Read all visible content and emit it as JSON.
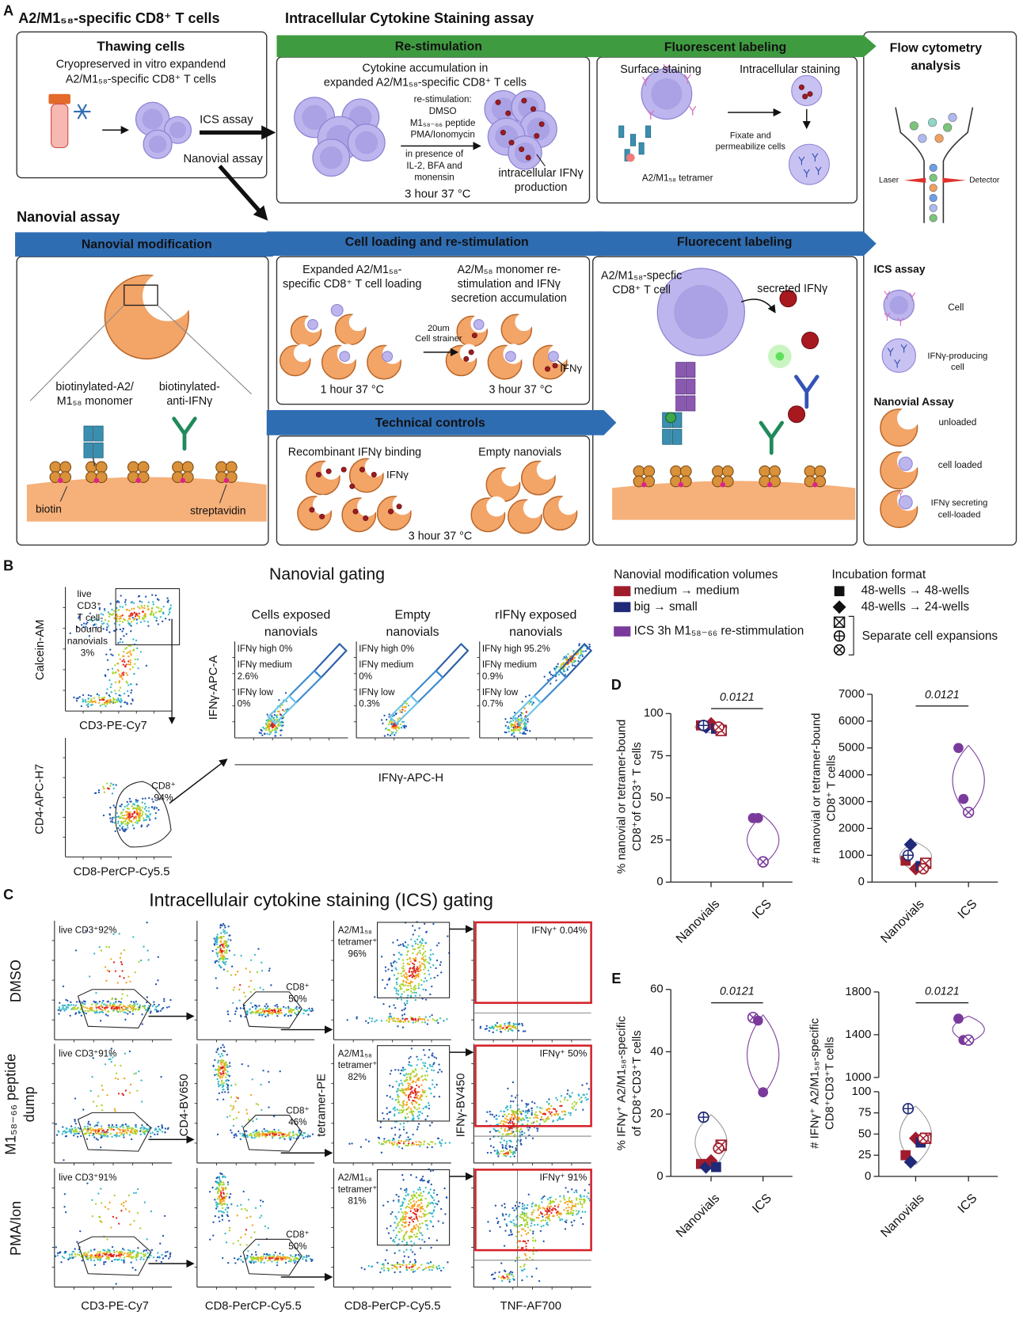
{
  "panel_a": {
    "label": "A",
    "title": "A2/M1₅₈-specific CD8⁺ T cells",
    "ics_title": "Intracellular Cytokine Staining assay",
    "thawing": {
      "title": "Thawing cells",
      "line1": "Cryopreserved in vitro expandend",
      "line2": "A2/M1₅₈-specific CD8⁺ T cells",
      "ics_arrow": "ICS assay",
      "nanovial_arrow": "Nanovial assay"
    },
    "restim": {
      "banner": "Re-stimulation",
      "line1": "Cytokine accumulation in",
      "line2": "expanded A2/M1₅₈-specific CD8⁺ T cells",
      "conditions": [
        "re-stimulation:",
        "DMSO",
        "M1₅₈₋₆₆ peptide",
        "PMA/Ionomycin"
      ],
      "presence": [
        "in presence of",
        "IL-2, BFA and",
        "monensin"
      ],
      "product": [
        "intracellular IFNγ",
        "production"
      ],
      "time": "3 hour 37 °C"
    },
    "labeling": {
      "banner": "Fluorescent labeling",
      "surface": "Surface staining",
      "intracellular": "Intracellular staining",
      "fixate": [
        "Fixate and",
        "permeabilize cells"
      ],
      "tetramer": "A2/M1₅₈ tetramer"
    },
    "flow": {
      "title": [
        "Flow cytometry",
        "analysis"
      ],
      "laser": "Laser",
      "detector": "Detector",
      "ics": "ICS assay",
      "cell": "Cell",
      "ifng_cell": [
        "IFNγ-producing",
        "cell"
      ],
      "nanovial": "Nanovial Assay",
      "unloaded": "unloaded",
      "loaded": "cell loaded",
      "secreting": [
        "IFNγ secreting",
        "cell-loaded"
      ]
    },
    "nanovial_title": "Nanovial assay",
    "modification": {
      "banner": "Nanovial modification",
      "monomer": [
        "biotinylated-A2/",
        "M1₅₈ monomer"
      ],
      "anti": [
        "biotinylated-",
        "anti-IFNγ"
      ],
      "biotin": "biotin",
      "streptavidin": "streptavidin"
    },
    "loading": {
      "banner": "Cell loading and re-stimulation",
      "left": [
        "Expanded A2/M1₅₈-",
        "specific CD8⁺ T cell loading"
      ],
      "right": [
        "A2/M₅₈ monomer re-",
        "stimulation and IFNγ",
        "secretion accumulation"
      ],
      "strainer": [
        "20um",
        "Cell strainer"
      ],
      "ifng": "IFNγ",
      "time_left": "1 hour 37 °C",
      "time_right": "3 hour 37 °C"
    },
    "controls": {
      "banner": "Technical controls",
      "recombinant": "Recombinant IFNγ binding",
      "empty": "Empty nanovials",
      "ifng": "IFNγ",
      "time": "3 hour 37 °C"
    },
    "fluor": {
      "banner": "Fluorecent labeling",
      "cell": [
        "A2/M1₅₈-specfic",
        "CD8⁺ T cell"
      ],
      "secreted": "secreted IFNγ"
    }
  },
  "panel_b": {
    "label": "B",
    "title": "Nanovial gating",
    "plot1": {
      "y": "Calcein-AM",
      "x": "CD3-PE-Cy7",
      "gate": [
        "live",
        "CD3⁺",
        "T cell-",
        "bound",
        "nanovials",
        "3%"
      ]
    },
    "plot2": {
      "y": "CD4-APC-H7",
      "x": "CD8-PerCP-Cy5.5",
      "gate": [
        "CD8⁺",
        "94%"
      ]
    },
    "ifng_plots": {
      "y": "IFNγ-APC-A",
      "x": "IFNγ-APC-H",
      "plots": [
        {
          "title": [
            "Cells exposed",
            "nanovials"
          ],
          "gates": [
            "IFNγ high 0%",
            "IFNγ medium",
            "2.6%",
            "IFNγ low",
            "0%"
          ]
        },
        {
          "title": [
            "Empty",
            "nanovials"
          ],
          "gates": [
            "IFNγ high 0%",
            "IFNγ medium",
            "0%",
            "IFNγ low",
            "0.3%"
          ]
        },
        {
          "title": [
            "rIFNγ exposed",
            "nanovials"
          ],
          "gates": [
            "IFNγ high 95.2%",
            "IFNγ medium",
            "0.9%",
            "IFNγ low",
            "0.7%"
          ]
        }
      ]
    },
    "legend": {
      "color_title": "Nanovial modification volumes",
      "colors": [
        {
          "name": "medium → medium",
          "color": "#a01c2c"
        },
        {
          "name": "big → small",
          "color": "#1f2a78"
        },
        {
          "name": "ICS 3h M1₅₈₋₆₆ re-stimmulation",
          "color": "#7a3a9c"
        }
      ],
      "format_title": "Incubation format",
      "formats": [
        {
          "name": "48-wells → 48-wells",
          "marker": "square"
        },
        {
          "name": "48-wells → 24-wells",
          "marker": "diamond"
        }
      ],
      "expansions": {
        "name": "Separate cell expansions",
        "markers": [
          "boxed-x",
          "circle-plus",
          "circle-x"
        ]
      }
    }
  },
  "panel_c": {
    "label": "C",
    "title": "Intracellulair cytokine staining (ICS) gating",
    "rows": [
      {
        "name": [
          "DMSO"
        ],
        "live": "live CD3⁺92%",
        "cd8": [
          "CD8⁺",
          "50%"
        ],
        "tetramer": [
          "A2/M1₅₈",
          "tetramer⁺",
          "96%"
        ],
        "ifng": "IFNγ⁺ 0.04%"
      },
      {
        "name": [
          "M1₅₈₋₆₆ peptide",
          "dump"
        ],
        "live": "live CD3⁺91%",
        "cd8": [
          "CD8⁺",
          "46%"
        ],
        "tetramer": [
          "A2/M1₅₈",
          "tetramer⁺",
          "82%"
        ],
        "ifng": "IFNγ⁺ 50%"
      },
      {
        "name": [
          "PMA/Ion"
        ],
        "live": "live CD3⁺91%",
        "cd8": [
          "CD8⁺",
          "50%"
        ],
        "tetramer": [
          "A2/M1₅₈",
          "tetramer⁺",
          "81%"
        ],
        "ifng": "IFNγ⁺ 91%"
      }
    ],
    "x_labels": [
      "CD3-PE-Cy7",
      "CD8-PerCP-Cy5.5",
      "CD8-PerCP-Cy5.5",
      "TNF-AF700"
    ],
    "y_labels": [
      "CD4-BV650",
      "tetramer-PE",
      "IFNγ-BV450"
    ]
  },
  "panel_d_label": "D",
  "panel_e_label": "E",
  "chart_data": [
    {
      "type": "dotplot",
      "ylabel": [
        "% nanovial or tetramer-bound",
        "CD8⁺of CD3⁺ T cells"
      ],
      "categories": [
        "Nanovials",
        "ICS"
      ],
      "ylim": [
        0,
        100
      ],
      "yticks": [
        0,
        25,
        50,
        75,
        100
      ],
      "p_value": "0.0121",
      "points": [
        {
          "category": "Nanovials",
          "value": 93,
          "color": "#a01c2c",
          "marker": "square"
        },
        {
          "category": "Nanovials",
          "value": 92,
          "color": "#1f2a78",
          "marker": "diamond"
        },
        {
          "category": "Nanovials",
          "value": 94,
          "color": "#a01c2c",
          "marker": "diamond"
        },
        {
          "category": "Nanovials",
          "value": 91,
          "color": "#1f2a78",
          "marker": "square"
        },
        {
          "category": "Nanovials",
          "value": 90,
          "color": "#a01c2c",
          "marker": "boxed-x"
        },
        {
          "category": "Nanovials",
          "value": 93,
          "color": "#1f2a78",
          "marker": "circle-plus"
        },
        {
          "category": "Nanovials",
          "value": 92,
          "color": "#a01c2c",
          "marker": "circle-x"
        },
        {
          "category": "ICS",
          "value": 38,
          "color": "#7a3a9c",
          "marker": "circle"
        },
        {
          "category": "ICS",
          "value": 38,
          "color": "#7a3a9c",
          "marker": "circle"
        },
        {
          "category": "ICS",
          "value": 12,
          "color": "#7a3a9c",
          "marker": "circle-x"
        }
      ]
    },
    {
      "type": "dotplot",
      "ylabel": [
        "# nanovial or tetramer-bound",
        "CD8⁺ T cells"
      ],
      "categories": [
        "Nanovials",
        "ICS"
      ],
      "ylim": [
        0,
        7000
      ],
      "yticks": [
        0,
        1000,
        2000,
        3000,
        4000,
        5000,
        6000,
        7000
      ],
      "p_value": "0.0121",
      "points": [
        {
          "category": "Nanovials",
          "value": 800,
          "color": "#a01c2c",
          "marker": "square"
        },
        {
          "category": "Nanovials",
          "value": 1400,
          "color": "#1f2a78",
          "marker": "diamond"
        },
        {
          "category": "Nanovials",
          "value": 500,
          "color": "#a01c2c",
          "marker": "diamond"
        },
        {
          "category": "Nanovials",
          "value": 600,
          "color": "#1f2a78",
          "marker": "square"
        },
        {
          "category": "Nanovials",
          "value": 700,
          "color": "#a01c2c",
          "marker": "boxed-x"
        },
        {
          "category": "Nanovials",
          "value": 1000,
          "color": "#1f2a78",
          "marker": "circle-plus"
        },
        {
          "category": "Nanovials",
          "value": 500,
          "color": "#a01c2c",
          "marker": "circle-x"
        },
        {
          "category": "ICS",
          "value": 5000,
          "color": "#7a3a9c",
          "marker": "circle"
        },
        {
          "category": "ICS",
          "value": 3100,
          "color": "#7a3a9c",
          "marker": "circle"
        },
        {
          "category": "ICS",
          "value": 2600,
          "color": "#7a3a9c",
          "marker": "circle-x"
        }
      ]
    },
    {
      "type": "dotplot",
      "ylabel": [
        "% IFNγ⁺ A2/M1₅₈-specific",
        "of CD8⁺CD3⁺T cells"
      ],
      "categories": [
        "Nanovials",
        "ICS"
      ],
      "ylim": [
        0,
        60
      ],
      "yticks": [
        0,
        20,
        40,
        60
      ],
      "p_value": "0.0121",
      "points": [
        {
          "category": "Nanovials",
          "value": 4,
          "color": "#a01c2c",
          "marker": "square"
        },
        {
          "category": "Nanovials",
          "value": 3,
          "color": "#1f2a78",
          "marker": "diamond"
        },
        {
          "category": "Nanovials",
          "value": 5,
          "color": "#a01c2c",
          "marker": "diamond"
        },
        {
          "category": "Nanovials",
          "value": 3,
          "color": "#1f2a78",
          "marker": "square"
        },
        {
          "category": "Nanovials",
          "value": 10,
          "color": "#a01c2c",
          "marker": "boxed-x"
        },
        {
          "category": "Nanovials",
          "value": 19,
          "color": "#1f2a78",
          "marker": "circle-plus"
        },
        {
          "category": "Nanovials",
          "value": 9,
          "color": "#a01c2c",
          "marker": "circle-x"
        },
        {
          "category": "ICS",
          "value": 51,
          "color": "#7a3a9c",
          "marker": "circle-x"
        },
        {
          "category": "ICS",
          "value": 50,
          "color": "#7a3a9c",
          "marker": "circle"
        },
        {
          "category": "ICS",
          "value": 27,
          "color": "#7a3a9c",
          "marker": "circle"
        }
      ]
    },
    {
      "type": "dotplot",
      "ylabel": [
        "# IFNγ⁺ A2/M1₅₈-specific",
        "CD8⁺CD3⁺T cells"
      ],
      "categories": [
        "Nanovials",
        "ICS"
      ],
      "ylim": [
        0,
        1800
      ],
      "axis_break": [
        100,
        1000
      ],
      "yticks": [
        0,
        25,
        50,
        75,
        100,
        1000,
        1400,
        1800
      ],
      "p_value": "0.0121",
      "points": [
        {
          "category": "Nanovials",
          "value": 25,
          "color": "#a01c2c",
          "marker": "square"
        },
        {
          "category": "Nanovials",
          "value": 17,
          "color": "#1f2a78",
          "marker": "diamond"
        },
        {
          "category": "Nanovials",
          "value": 45,
          "color": "#a01c2c",
          "marker": "diamond"
        },
        {
          "category": "Nanovials",
          "value": 40,
          "color": "#1f2a78",
          "marker": "square"
        },
        {
          "category": "Nanovials",
          "value": 45,
          "color": "#a01c2c",
          "marker": "boxed-x"
        },
        {
          "category": "Nanovials",
          "value": 80,
          "color": "#1f2a78",
          "marker": "circle-plus"
        },
        {
          "category": "Nanovials",
          "value": 45,
          "color": "#a01c2c",
          "marker": "circle-x"
        },
        {
          "category": "ICS",
          "value": 1550,
          "color": "#7a3a9c",
          "marker": "circle"
        },
        {
          "category": "ICS",
          "value": 1350,
          "color": "#7a3a9c",
          "marker": "circle"
        },
        {
          "category": "ICS",
          "value": 1350,
          "color": "#7a3a9c",
          "marker": "circle-x"
        }
      ]
    }
  ]
}
